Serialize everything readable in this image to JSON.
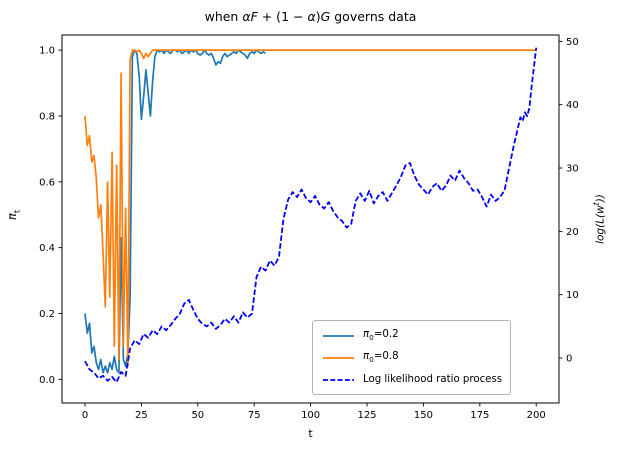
{
  "chart_data": {
    "type": "line",
    "title": "when αF + (1 − α)G governs data",
    "title_parts": [
      {
        "t": "when "
      },
      {
        "t": "αF",
        "i": 1
      },
      {
        "t": " + (1 − "
      },
      {
        "t": "α",
        "i": 1
      },
      {
        "t": ")"
      },
      {
        "t": "G",
        "i": 1
      },
      {
        "t": " governs data"
      }
    ],
    "xlabel": "t",
    "ylabel_left": "πt",
    "ylabel_left_parts": [
      {
        "t": "π",
        "i": 1
      },
      {
        "t": "t",
        "s": "sub"
      }
    ],
    "ylabel_right": "log(L(w^t))",
    "ylabel_right_parts": [
      {
        "t": "log(L(w",
        "i": 1
      },
      {
        "t": "t",
        "i": 1,
        "s": "sup"
      },
      {
        "t": "))",
        "i": 1
      }
    ],
    "grid": false,
    "legend_position": "lower right",
    "xlim": [
      -10.2,
      210.1
    ],
    "ylim_left": [
      -0.072,
      1.046
    ],
    "ylim_right": [
      -7.1,
      51.0
    ],
    "xticks": [
      0,
      25,
      50,
      75,
      100,
      125,
      150,
      175,
      200
    ],
    "left_axis": {
      "ticks": [
        0.0,
        0.2,
        0.4,
        0.6,
        0.8,
        1.0
      ],
      "tick_labels": [
        "0.0",
        "0.2",
        "0.4",
        "0.6",
        "0.8",
        "1.0"
      ]
    },
    "right_axis": {
      "ticks": [
        0,
        10,
        20,
        30,
        40,
        50
      ],
      "tick_labels": [
        "0",
        "10",
        "20",
        "30",
        "40",
        "50"
      ]
    },
    "series": [
      {
        "id": "pi0-0.2-line",
        "name": "π0=0.2",
        "label_parts": [
          {
            "t": "π",
            "i": 1
          },
          {
            "t": "0",
            "s": "sub"
          },
          {
            "t": "=0.2"
          }
        ],
        "axis": "left",
        "color": "#1f77b4",
        "style": "solid",
        "t_start": 0,
        "values": [
          0.2,
          0.14,
          0.17,
          0.08,
          0.1,
          0.05,
          0.03,
          0.06,
          0.02,
          0.04,
          0.02,
          0.05,
          0.03,
          0.07,
          0.03,
          0.02,
          0.43,
          0.06,
          0.04,
          0.08,
          0.25,
          0.98,
          1.0,
          0.99,
          0.92,
          0.79,
          0.86,
          0.94,
          0.87,
          0.8,
          0.91,
          0.98,
          1.0,
          0.995,
          1.0,
          0.99,
          1.0,
          0.995,
          0.99,
          1.0,
          1.0,
          0.995,
          1.0,
          0.99,
          0.995,
          1.0,
          0.99,
          1.0,
          0.995,
          1.0,
          0.99,
          0.985,
          0.99,
          1.0,
          0.99,
          0.985,
          0.99,
          0.975,
          0.955,
          0.965,
          0.96,
          0.98,
          0.99,
          0.98,
          0.985,
          0.99,
          0.995,
          0.99,
          1.0,
          0.995,
          0.99,
          0.985,
          0.975,
          0.99,
          0.995,
          0.99,
          1.0,
          0.995,
          0.99,
          0.995,
          0.99
        ]
      },
      {
        "id": "pi0-0.8-line",
        "name": "π0=0.8",
        "label_parts": [
          {
            "t": "π",
            "i": 1
          },
          {
            "t": "0",
            "s": "sub"
          },
          {
            "t": "=0.8"
          }
        ],
        "axis": "left",
        "color": "#ff7f0e",
        "style": "solid",
        "t": [
          0,
          1,
          2,
          3,
          4,
          5,
          6,
          7,
          8,
          9,
          10,
          11,
          12,
          13,
          14,
          15,
          16,
          17,
          18,
          19,
          20,
          21,
          22,
          23,
          24,
          25,
          26,
          27,
          28,
          29,
          30,
          200
        ],
        "values": [
          0.8,
          0.71,
          0.74,
          0.66,
          0.68,
          0.61,
          0.49,
          0.53,
          0.38,
          0.22,
          0.6,
          0.25,
          0.69,
          0.1,
          0.65,
          0.06,
          0.93,
          0.1,
          0.52,
          0.04,
          0.97,
          1.0,
          1.0,
          0.995,
          1.0,
          0.99,
          0.975,
          0.99,
          0.98,
          0.99,
          1.0,
          1.0
        ]
      },
      {
        "id": "log-likelihood-line",
        "name": "Log likelihood ratio process",
        "label_parts": [
          {
            "t": "Log likelihood ratio process"
          }
        ],
        "axis": "right",
        "color": "#0000ff",
        "style": "dashed",
        "t": [
          0,
          2,
          4,
          6,
          8,
          10,
          12,
          14,
          16,
          18,
          20,
          22,
          24,
          26,
          28,
          30,
          32,
          34,
          36,
          38,
          40,
          42,
          44,
          46,
          48,
          50,
          52,
          54,
          56,
          58,
          60,
          62,
          64,
          66,
          68,
          70,
          72,
          74,
          76,
          78,
          80,
          82,
          84,
          86,
          88,
          90,
          92,
          94,
          96,
          98,
          100,
          102,
          104,
          106,
          108,
          110,
          112,
          114,
          116,
          118,
          120,
          122,
          124,
          126,
          128,
          130,
          132,
          134,
          136,
          138,
          140,
          142,
          144,
          146,
          148,
          150,
          152,
          154,
          156,
          158,
          160,
          162,
          164,
          166,
          168,
          170,
          172,
          174,
          176,
          178,
          180,
          182,
          184,
          186,
          188,
          190,
          192,
          193,
          194,
          195,
          196,
          197,
          198,
          199,
          200
        ],
        "values": [
          -0.5,
          -1.8,
          -2.3,
          -3.2,
          -2.8,
          -3.6,
          -3.0,
          -3.8,
          -2.2,
          -2.8,
          1.5,
          2.8,
          2.2,
          3.8,
          3.2,
          4.4,
          3.8,
          5.0,
          4.4,
          5.2,
          6.2,
          7.0,
          8.6,
          9.2,
          7.6,
          6.2,
          5.4,
          5.0,
          5.6,
          4.6,
          5.2,
          6.2,
          5.6,
          6.6,
          5.6,
          7.2,
          6.4,
          7.0,
          12.8,
          14.4,
          13.8,
          15.4,
          14.6,
          16.0,
          22.0,
          25.0,
          26.2,
          25.4,
          26.6,
          25.2,
          24.6,
          25.6,
          24.2,
          23.6,
          24.6,
          23.2,
          22.2,
          21.6,
          20.6,
          21.2,
          24.8,
          26.0,
          24.8,
          26.4,
          24.4,
          25.6,
          26.2,
          24.8,
          26.0,
          27.2,
          28.6,
          30.4,
          30.8,
          28.8,
          27.4,
          26.6,
          25.8,
          27.0,
          27.6,
          26.4,
          27.2,
          28.8,
          28.0,
          29.6,
          28.4,
          27.6,
          26.4,
          26.6,
          25.4,
          23.9,
          25.8,
          24.8,
          25.4,
          26.5,
          30.0,
          33.5,
          36.5,
          38.0,
          37.4,
          38.8,
          38.2,
          39.5,
          43.0,
          46.0,
          49.0
        ]
      }
    ],
    "colors": {
      "spine": "#000000",
      "background": "#ffffff"
    }
  }
}
